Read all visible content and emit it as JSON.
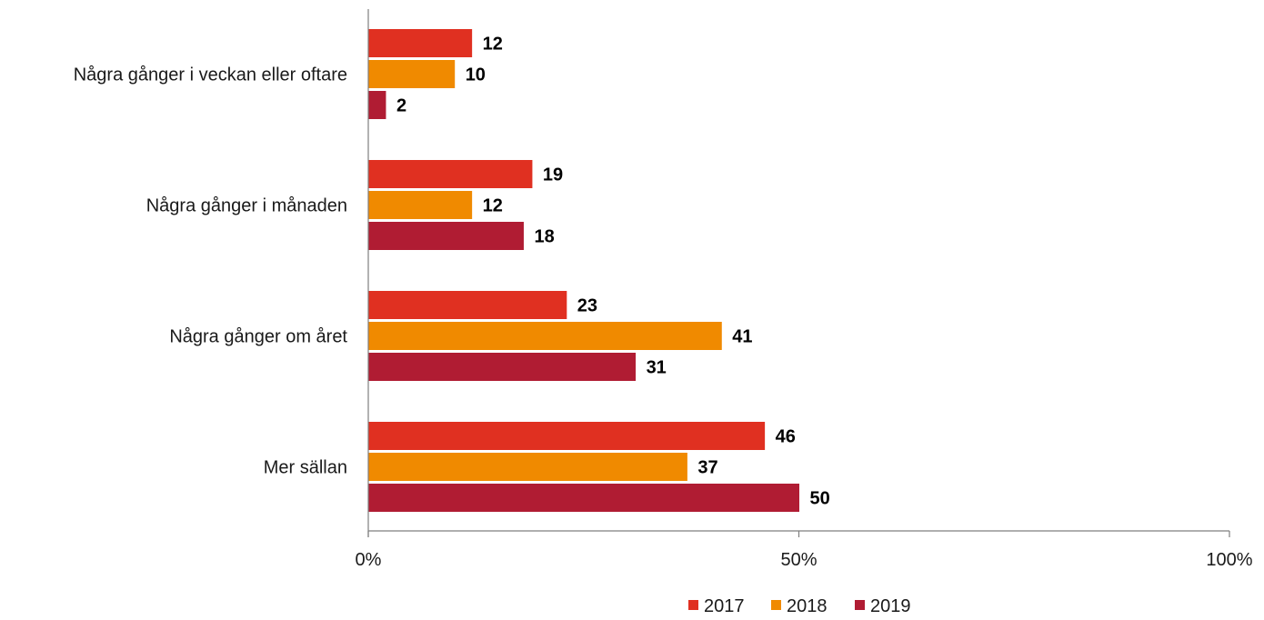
{
  "chart_data": {
    "type": "bar",
    "orientation": "horizontal",
    "categories": [
      "Några gånger i veckan eller oftare",
      "Några gånger i månaden",
      "Några gånger om året",
      "Mer sällan"
    ],
    "series": [
      {
        "name": "2017",
        "color": "#e03021",
        "values": [
          12,
          19,
          23,
          46
        ]
      },
      {
        "name": "2018",
        "color": "#f08a00",
        "values": [
          10,
          12,
          41,
          37
        ]
      },
      {
        "name": "2019",
        "color": "#b01c33",
        "values": [
          2,
          18,
          31,
          50
        ]
      }
    ],
    "xlim": [
      0,
      100
    ],
    "x_ticks": [
      "0%",
      "50%",
      "100%"
    ],
    "grid": false,
    "legend_position": "bottom",
    "data_labels": true
  }
}
